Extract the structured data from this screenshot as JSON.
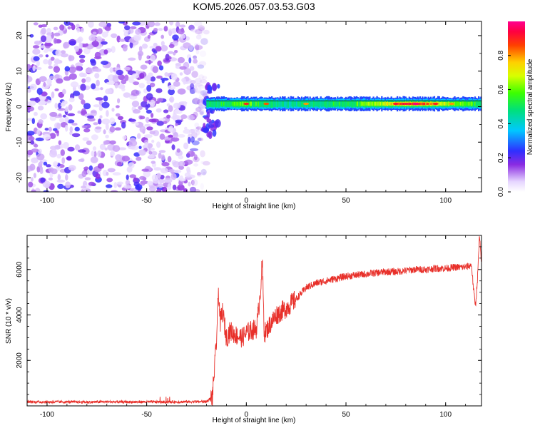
{
  "title": "KOM5.2026.057.03.53.G03",
  "chart_data": [
    {
      "type": "heatmap",
      "name": "spectrogram",
      "xlabel": "Height of straight line (km)",
      "ylabel": "Frequency (Hz)",
      "xlim": [
        -110,
        118
      ],
      "ylim": [
        -24,
        24
      ],
      "x_ticks": [
        -100,
        -50,
        0,
        50,
        100
      ],
      "y_ticks": [
        -20,
        -10,
        0,
        10,
        20
      ],
      "noise_region_x": [
        -110,
        -20
      ],
      "signal_onset_x": -22,
      "carrier": {
        "frequency_hz": 0.8,
        "x": [
          -20,
          -10,
          0,
          10,
          20,
          30,
          40,
          50,
          60,
          70,
          80,
          90,
          100,
          110,
          118
        ],
        "amplitude": [
          0.45,
          0.55,
          0.6,
          0.5,
          0.45,
          0.5,
          0.5,
          0.55,
          0.6,
          0.7,
          0.95,
          0.85,
          0.65,
          0.6,
          0.55
        ]
      },
      "colorbar": {
        "label": "Normalized spectral amplitude",
        "ticks": [
          "0.0",
          "0.2",
          "0.4",
          "0.6",
          "0.8"
        ],
        "range": [
          0,
          1
        ]
      }
    },
    {
      "type": "line",
      "name": "snr",
      "xlabel": "Height of straight line (km)",
      "ylabel": "SNR (10 * v/v)",
      "xlim": [
        -110,
        118
      ],
      "ylim": [
        0,
        7500
      ],
      "x_ticks": [
        -100,
        -50,
        0,
        50,
        100
      ],
      "y_ticks": [
        2000,
        4000,
        6000
      ],
      "color": "#e8302a",
      "series": [
        {
          "name": "SNR",
          "x": [
            -110,
            -100,
            -90,
            -80,
            -70,
            -60,
            -50,
            -40,
            -30,
            -20,
            -17,
            -15,
            -14,
            -13,
            -12,
            -10,
            -8,
            -5,
            -2,
            0,
            2,
            5,
            6,
            7,
            8,
            9,
            10,
            12,
            15,
            20,
            25,
            30,
            35,
            40,
            45,
            50,
            55,
            60,
            65,
            70,
            75,
            80,
            85,
            90,
            95,
            100,
            105,
            110,
            113,
            114,
            115,
            116,
            117,
            118
          ],
          "y": [
            180,
            170,
            175,
            165,
            180,
            170,
            175,
            170,
            180,
            190,
            400,
            2800,
            5100,
            3600,
            4200,
            3000,
            3300,
            3100,
            3000,
            3200,
            3300,
            3400,
            4100,
            5000,
            6300,
            3200,
            3300,
            3600,
            4000,
            4300,
            4700,
            5200,
            5400,
            5500,
            5600,
            5700,
            5750,
            5800,
            5850,
            5900,
            5900,
            5950,
            6000,
            6000,
            6050,
            6050,
            6100,
            6100,
            6200,
            5100,
            4400,
            5600,
            7500,
            6100
          ]
        }
      ]
    }
  ]
}
